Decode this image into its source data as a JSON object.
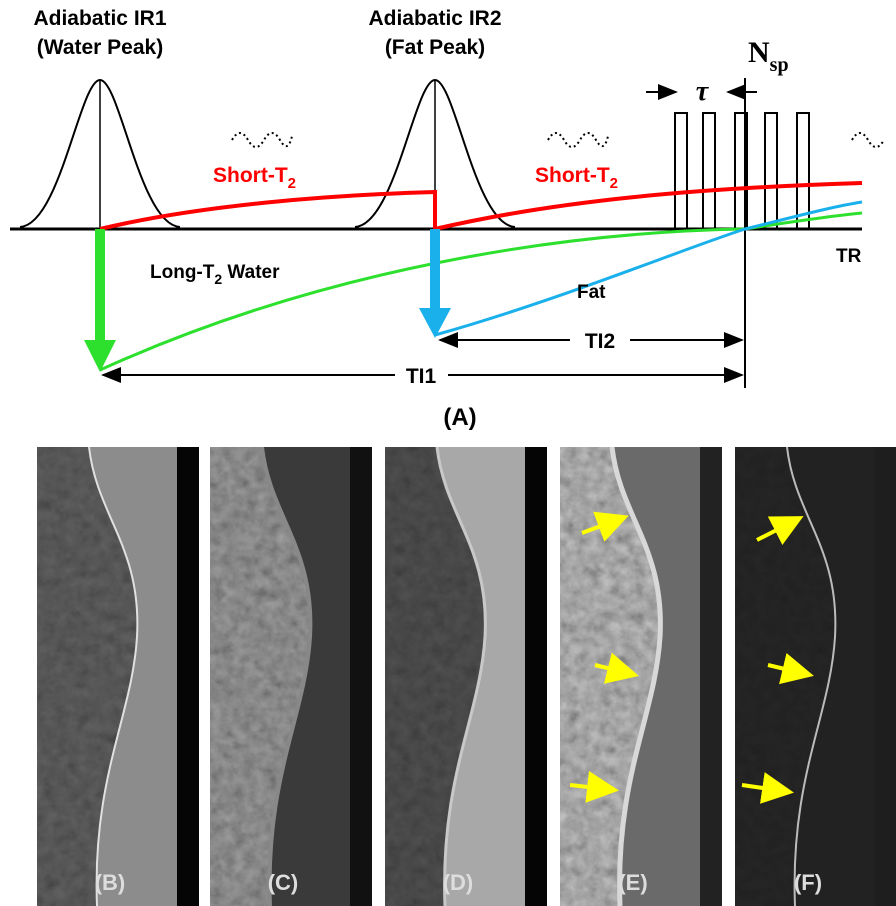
{
  "diagram": {
    "pulses": [
      {
        "title": "Adiabatic IR1",
        "subtitle": "(Water Peak)"
      },
      {
        "title": "Adiabatic IR2",
        "subtitle": "(Fat Peak)"
      }
    ],
    "spoke_label": {
      "base": "N",
      "sub": "sp"
    },
    "spacing_label": "τ",
    "short_t2_labels": [
      {
        "base": "Short-T",
        "sub": "2"
      },
      {
        "base": "Short-T",
        "sub": "2"
      }
    ],
    "long_t2_label": {
      "base": "Long-T",
      "sub": "2",
      "rest": " Water"
    },
    "fat_label": "Fat",
    "axis_label": "TR",
    "intervals": [
      "TI2",
      "TI1"
    ],
    "panel_label": "(A)"
  },
  "images": {
    "labels": [
      "(B)",
      "(C)",
      "(D)",
      "(E)",
      "(F)"
    ]
  }
}
